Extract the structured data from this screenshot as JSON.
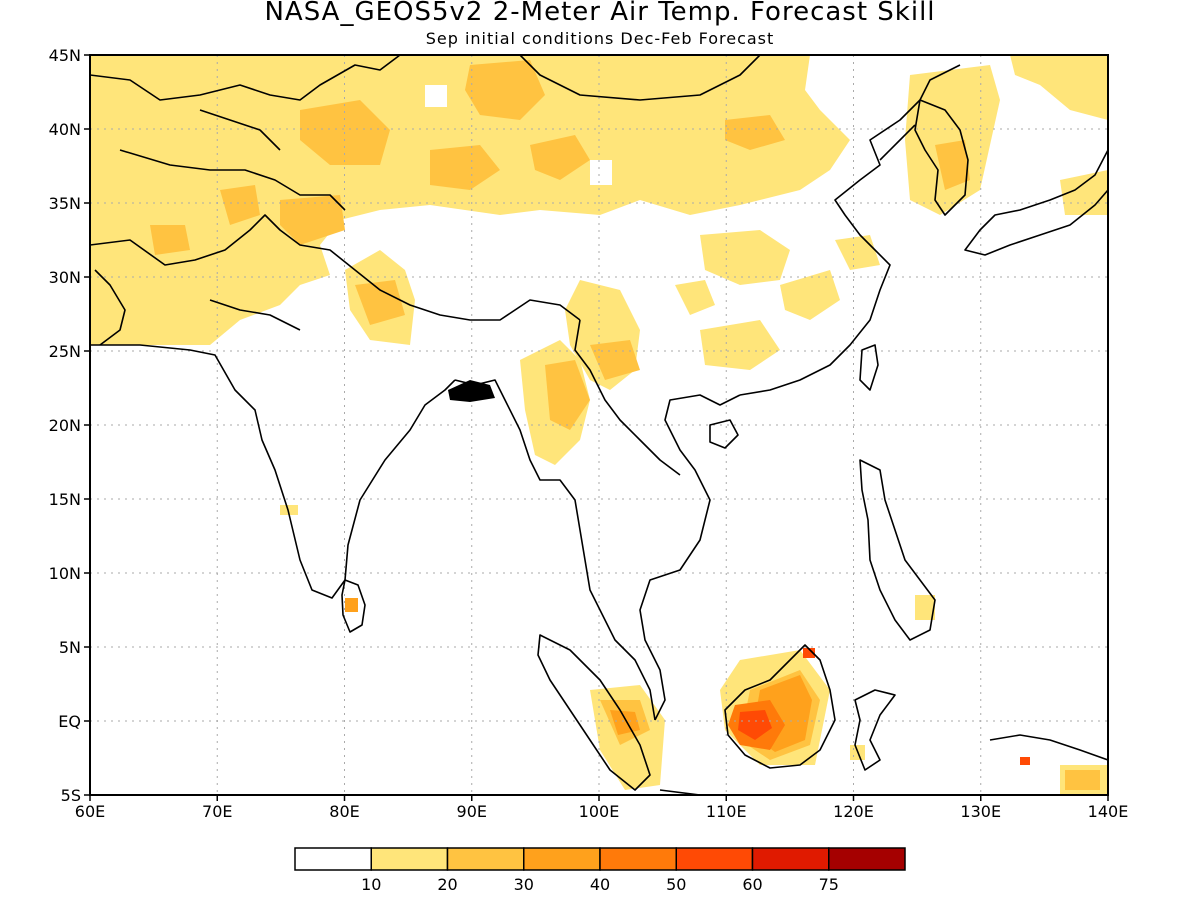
{
  "title": "NASA_GEOS5v2 2-Meter Air Temp. Forecast Skill",
  "subtitle": "Sep initial conditions  Dec-Feb Forecast",
  "map": {
    "lon_labels": [
      "60E",
      "70E",
      "80E",
      "90E",
      "100E",
      "110E",
      "120E",
      "130E",
      "140E"
    ],
    "lat_labels": [
      "45N",
      "40N",
      "35N",
      "30N",
      "25N",
      "20N",
      "15N",
      "10N",
      "5N",
      "EQ",
      "5S"
    ],
    "lon_range": [
      60,
      140
    ],
    "lat_range": [
      -5,
      45
    ],
    "grid": true
  },
  "colorbar": {
    "colors": [
      "#ffffff",
      "#ffe57a",
      "#ffc341",
      "#ffa11c",
      "#ff7a0a",
      "#ff4a05",
      "#e01a00",
      "#a50000"
    ],
    "tick_labels": [
      "10",
      "20",
      "30",
      "40",
      "50",
      "60",
      "75"
    ]
  }
}
